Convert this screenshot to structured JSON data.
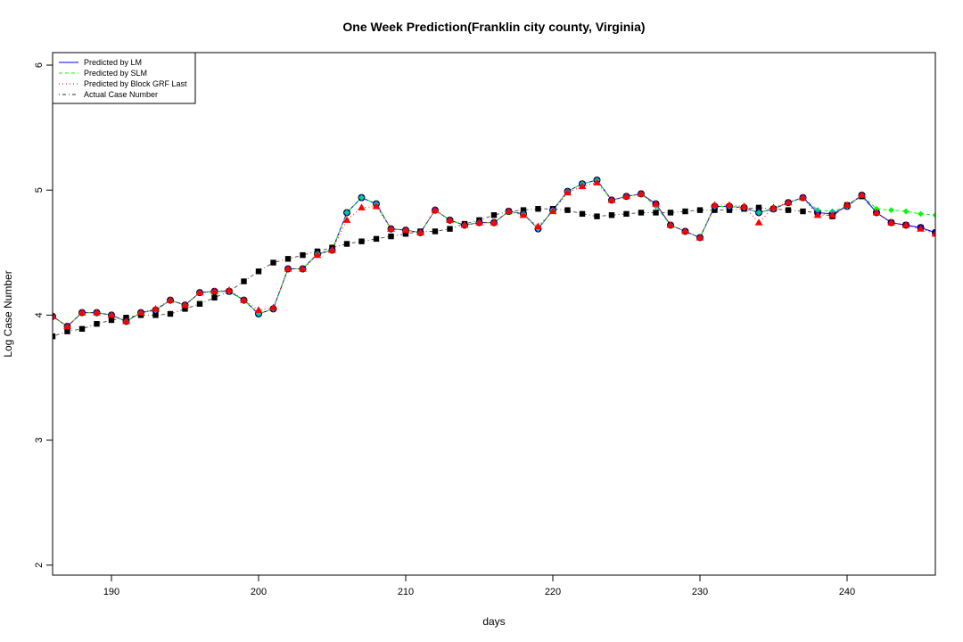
{
  "chart_data": {
    "type": "line",
    "title": "One Week Prediction(Franklin city county, Virginia)",
    "xlabel": "days",
    "ylabel": "Log Case Number",
    "xlim": [
      186,
      246
    ],
    "ylim": [
      1.92,
      6.1
    ],
    "x_ticks": [
      190,
      200,
      210,
      220,
      230,
      240
    ],
    "y_ticks": [
      2,
      3,
      4,
      5,
      6
    ],
    "grid": false,
    "legend_position": "top-left",
    "x": [
      186,
      187,
      188,
      189,
      190,
      191,
      192,
      193,
      194,
      195,
      196,
      197,
      198,
      199,
      200,
      201,
      202,
      203,
      204,
      205,
      206,
      207,
      208,
      209,
      210,
      211,
      212,
      213,
      214,
      215,
      216,
      217,
      218,
      219,
      220,
      221,
      222,
      223,
      224,
      225,
      226,
      227,
      228,
      229,
      230,
      231,
      232,
      233,
      234,
      235,
      236,
      237,
      238,
      239,
      240,
      241,
      242,
      243,
      244,
      245,
      246
    ],
    "series": [
      {
        "name": "Predicted by LM",
        "color": "#0000ff",
        "line_style": "solid",
        "marker": "circle",
        "values": [
          3.99,
          3.91,
          4.02,
          4.02,
          4.0,
          3.95,
          4.02,
          4.04,
          4.12,
          4.08,
          4.18,
          4.19,
          4.19,
          4.12,
          4.01,
          4.05,
          4.37,
          4.37,
          4.49,
          4.52,
          4.82,
          4.94,
          4.89,
          4.69,
          4.68,
          4.66,
          4.84,
          4.76,
          4.72,
          4.74,
          4.74,
          4.83,
          4.81,
          4.69,
          4.84,
          4.99,
          5.05,
          5.08,
          4.92,
          4.95,
          4.97,
          4.89,
          4.72,
          4.67,
          4.62,
          4.87,
          4.87,
          4.86,
          4.82,
          4.85,
          4.9,
          4.94,
          4.82,
          4.81,
          4.87,
          4.96,
          4.82,
          4.74,
          4.72,
          4.7,
          4.66
        ]
      },
      {
        "name": "Predicted by SLM",
        "color": "#00ff00",
        "line_style": "dashed",
        "marker": "diamond",
        "values": [
          3.99,
          3.91,
          4.02,
          4.02,
          4.0,
          3.95,
          4.02,
          4.04,
          4.12,
          4.08,
          4.18,
          4.19,
          4.19,
          4.12,
          4.01,
          4.05,
          4.37,
          4.37,
          4.49,
          4.52,
          4.82,
          4.94,
          4.89,
          4.69,
          4.68,
          4.66,
          4.84,
          4.76,
          4.72,
          4.74,
          4.74,
          4.83,
          4.81,
          4.69,
          4.84,
          4.99,
          5.05,
          5.08,
          4.92,
          4.95,
          4.97,
          4.87,
          4.72,
          4.67,
          4.62,
          4.87,
          4.87,
          4.86,
          4.82,
          4.85,
          4.9,
          4.94,
          4.84,
          4.83,
          4.87,
          4.96,
          4.85,
          4.84,
          4.83,
          4.81,
          4.8
        ]
      },
      {
        "name": "Predicted by Block GRF Last",
        "color": "#ff0000",
        "line_style": "dotted",
        "marker": "triangle",
        "values": [
          3.99,
          3.91,
          4.02,
          4.02,
          4.0,
          3.95,
          4.02,
          4.05,
          4.12,
          4.08,
          4.18,
          4.19,
          4.2,
          4.12,
          4.04,
          4.06,
          4.37,
          4.37,
          4.48,
          4.52,
          4.76,
          4.86,
          4.87,
          4.69,
          4.68,
          4.66,
          4.84,
          4.76,
          4.72,
          4.74,
          4.74,
          4.83,
          4.8,
          4.71,
          4.83,
          4.98,
          5.03,
          5.06,
          4.92,
          4.95,
          4.97,
          4.89,
          4.72,
          4.67,
          4.62,
          4.88,
          4.88,
          4.87,
          4.74,
          4.86,
          4.9,
          4.94,
          4.8,
          4.8,
          4.88,
          4.96,
          4.82,
          4.74,
          4.72,
          4.69,
          4.65
        ]
      },
      {
        "name": "Actual Case Number",
        "color": "#000000",
        "line_style": "dotdash",
        "marker": "square",
        "values": [
          3.83,
          3.87,
          3.89,
          3.93,
          3.96,
          3.98,
          4.0,
          4.0,
          4.01,
          4.05,
          4.09,
          4.14,
          4.19,
          4.27,
          4.35,
          4.42,
          4.45,
          4.48,
          4.51,
          4.54,
          4.57,
          4.59,
          4.61,
          4.63,
          4.65,
          4.67,
          4.67,
          4.69,
          4.73,
          4.76,
          4.8,
          4.83,
          4.84,
          4.85,
          4.85,
          4.84,
          4.81,
          4.79,
          4.8,
          4.81,
          4.82,
          4.82,
          4.82,
          4.83,
          4.84,
          4.84,
          4.84,
          4.85,
          4.86,
          4.85,
          4.84,
          4.83,
          4.82,
          4.79,
          4.88,
          4.95,
          4.82,
          4.74,
          4.72,
          4.7,
          4.66
        ]
      }
    ]
  }
}
